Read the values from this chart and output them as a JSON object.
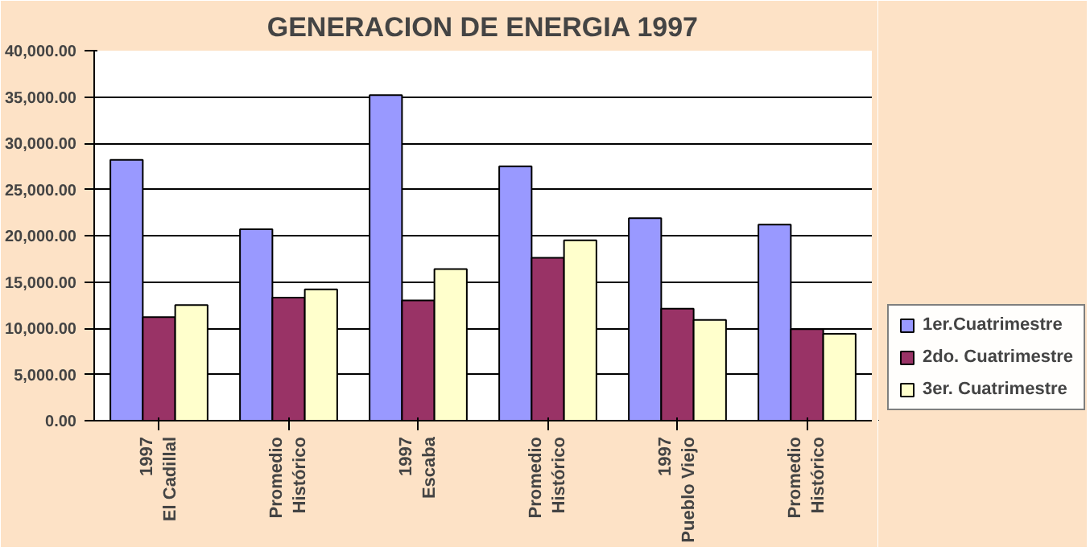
{
  "chart_data": {
    "type": "bar",
    "title": "GENERACION DE ENERGIA 1997",
    "categories": [
      "1997\nEl Cadillal",
      "Promedio\nHistórico",
      "1997\nEscaba",
      "Promedio\nHistórico",
      "1997\nPueblo Viejo",
      "Promedio\nHistórico"
    ],
    "series": [
      {
        "name": "1er.Cuatrimestre",
        "color": "#9999ff",
        "values": [
          28200,
          20700,
          35200,
          27500,
          21900,
          21200
        ]
      },
      {
        "name": "2do. Cuatrimestre",
        "color": "#993366",
        "values": [
          11200,
          13300,
          13000,
          17600,
          12100,
          9900
        ]
      },
      {
        "name": "3er. Cuatrimestre",
        "color": "#ffffcc",
        "values": [
          12500,
          14200,
          16400,
          19500,
          10900,
          9400
        ]
      }
    ],
    "ylim": [
      0,
      40000
    ],
    "yticks": [
      {
        "value": 0,
        "label": "0.00"
      },
      {
        "value": 5000,
        "label": "5,000.00"
      },
      {
        "value": 10000,
        "label": "10,000.00"
      },
      {
        "value": 15000,
        "label": "15,000.00"
      },
      {
        "value": 20000,
        "label": "20,000.00"
      },
      {
        "value": 25000,
        "label": "25,000.00"
      },
      {
        "value": 30000,
        "label": "30,000.00"
      },
      {
        "value": 35000,
        "label": "35,000.00"
      },
      {
        "value": 40000,
        "label": "40,000.00"
      }
    ],
    "grid": "y",
    "legend": "bottom right"
  }
}
